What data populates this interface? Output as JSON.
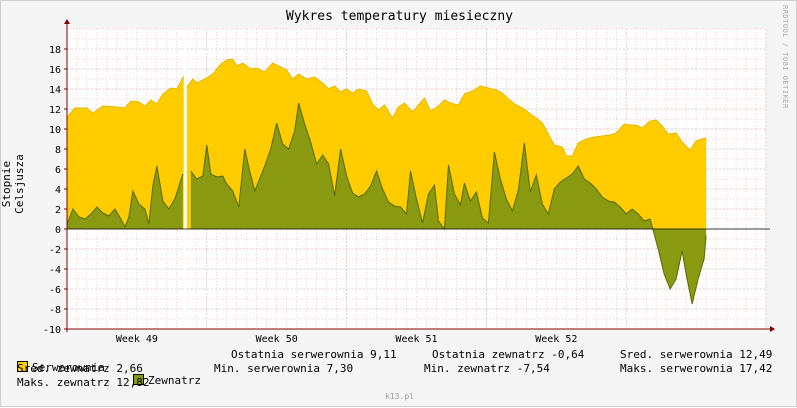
{
  "colors": {
    "serwerownia": "#FFCC00",
    "serwerownia_line": "#E8B800",
    "zewnatrz": "#8A9A10",
    "zewnatrz_line": "#5A6A00",
    "grid_minor": "#FF9999",
    "grid_major": "#C0C0C0",
    "axis": "#800000"
  },
  "watermark": "RRDTOOL / TOBI OETIKER",
  "footer": "k13.pl",
  "chart_data": {
    "type": "area",
    "title": "Wykres temperatury miesieczny",
    "ylabel": "Stopnie Celsjusza",
    "xlabel": "",
    "ylim": [
      -10,
      20
    ],
    "yticks": [
      "18",
      "16",
      "14",
      "12",
      "10",
      "8",
      "6",
      "4",
      "2",
      "0",
      "-2",
      "-4",
      "-6",
      "-8",
      "-10"
    ],
    "ytick_values": [
      18,
      16,
      14,
      12,
      10,
      8,
      6,
      4,
      2,
      0,
      -2,
      -4,
      -6,
      -8,
      -10
    ],
    "xlim": [
      0,
      35
    ],
    "xticks": [
      {
        "label": "Week 49",
        "x": 3.5
      },
      {
        "label": "Week 50",
        "x": 10.5
      },
      {
        "label": "Week 51",
        "x": 17.5
      },
      {
        "label": "Week 52",
        "x": 24.5
      }
    ],
    "grid": true,
    "gap": [
      5.85,
      6.0
    ],
    "series": [
      {
        "name": "Serwerownia",
        "points": [
          [
            0,
            11.2
          ],
          [
            0.4,
            12.1
          ],
          [
            1.0,
            12.1
          ],
          [
            1.3,
            11.6
          ],
          [
            1.8,
            12.3
          ],
          [
            2.5,
            12.2
          ],
          [
            2.9,
            12.1
          ],
          [
            3.2,
            12.8
          ],
          [
            3.6,
            12.7
          ],
          [
            3.9,
            12.3
          ],
          [
            4.2,
            12.9
          ],
          [
            4.5,
            12.5
          ],
          [
            4.8,
            13.5
          ],
          [
            5.2,
            14.1
          ],
          [
            5.5,
            14.0
          ],
          [
            5.8,
            15.1
          ],
          [
            5.85,
            15.3
          ],
          [
            6.0,
            14.2
          ],
          [
            6.3,
            15.0
          ],
          [
            6.5,
            14.6
          ],
          [
            6.9,
            15.0
          ],
          [
            7.3,
            15.5
          ],
          [
            7.7,
            16.5
          ],
          [
            8.0,
            16.9
          ],
          [
            8.3,
            17.0
          ],
          [
            8.5,
            16.3
          ],
          [
            8.8,
            16.6
          ],
          [
            9.2,
            16.0
          ],
          [
            9.5,
            16.1
          ],
          [
            9.9,
            15.7
          ],
          [
            10.3,
            16.6
          ],
          [
            10.6,
            16.3
          ],
          [
            11.0,
            15.9
          ],
          [
            11.3,
            15.0
          ],
          [
            11.6,
            15.5
          ],
          [
            12.0,
            15.0
          ],
          [
            12.4,
            15.2
          ],
          [
            12.8,
            14.6
          ],
          [
            13.1,
            14.0
          ],
          [
            13.4,
            14.3
          ],
          [
            13.7,
            13.7
          ],
          [
            14.0,
            14.0
          ],
          [
            14.3,
            13.6
          ],
          [
            14.6,
            14.0
          ],
          [
            15.0,
            13.8
          ],
          [
            15.3,
            12.5
          ],
          [
            15.6,
            11.9
          ],
          [
            15.9,
            12.4
          ],
          [
            16.3,
            11.1
          ],
          [
            16.6,
            12.2
          ],
          [
            16.9,
            12.6
          ],
          [
            17.3,
            11.7
          ],
          [
            17.6,
            12.4
          ],
          [
            17.9,
            13.1
          ],
          [
            18.2,
            11.8
          ],
          [
            18.6,
            12.3
          ],
          [
            18.9,
            12.9
          ],
          [
            19.2,
            12.6
          ],
          [
            19.6,
            12.4
          ],
          [
            19.9,
            13.5
          ],
          [
            20.3,
            13.8
          ],
          [
            20.7,
            14.3
          ],
          [
            21.1,
            14.1
          ],
          [
            21.5,
            13.9
          ],
          [
            21.8,
            13.6
          ],
          [
            22.1,
            13.0
          ],
          [
            22.5,
            12.4
          ],
          [
            22.9,
            12.0
          ],
          [
            23.2,
            11.5
          ],
          [
            23.5,
            11.1
          ],
          [
            23.8,
            10.6
          ],
          [
            24.1,
            9.5
          ],
          [
            24.4,
            8.4
          ],
          [
            24.8,
            8.2
          ],
          [
            25.0,
            7.3
          ],
          [
            25.3,
            7.3
          ],
          [
            25.6,
            8.6
          ],
          [
            26.0,
            9.0
          ],
          [
            26.4,
            9.2
          ],
          [
            26.8,
            9.3
          ],
          [
            27.2,
            9.4
          ],
          [
            27.5,
            9.6
          ],
          [
            27.9,
            10.5
          ],
          [
            28.2,
            10.4
          ],
          [
            28.5,
            10.4
          ],
          [
            28.8,
            10.1
          ],
          [
            29.2,
            10.8
          ],
          [
            29.5,
            10.9
          ],
          [
            29.8,
            10.3
          ],
          [
            30.1,
            9.5
          ],
          [
            30.5,
            9.6
          ],
          [
            30.8,
            8.7
          ],
          [
            31.2,
            7.9
          ],
          [
            31.5,
            8.8
          ],
          [
            31.8,
            9.0
          ],
          [
            32.0,
            9.1
          ]
        ]
      },
      {
        "name": "Zewnatrz",
        "points": [
          [
            0,
            0.5
          ],
          [
            0.3,
            2.0
          ],
          [
            0.6,
            1.2
          ],
          [
            0.9,
            1.0
          ],
          [
            1.2,
            1.5
          ],
          [
            1.5,
            2.2
          ],
          [
            1.8,
            1.6
          ],
          [
            2.1,
            1.3
          ],
          [
            2.4,
            2.0
          ],
          [
            2.7,
            1.0
          ],
          [
            2.9,
            0.2
          ],
          [
            3.1,
            1.2
          ],
          [
            3.3,
            3.8
          ],
          [
            3.6,
            2.5
          ],
          [
            3.9,
            2.0
          ],
          [
            4.1,
            0.5
          ],
          [
            4.3,
            4.3
          ],
          [
            4.5,
            6.3
          ],
          [
            4.8,
            2.8
          ],
          [
            5.1,
            2.0
          ],
          [
            5.4,
            3.0
          ],
          [
            5.8,
            5.5
          ],
          [
            6.2,
            5.8
          ],
          [
            6.5,
            5.0
          ],
          [
            6.8,
            5.3
          ],
          [
            7.0,
            8.4
          ],
          [
            7.2,
            5.5
          ],
          [
            7.5,
            5.2
          ],
          [
            7.8,
            5.3
          ],
          [
            8.0,
            4.5
          ],
          [
            8.3,
            3.8
          ],
          [
            8.6,
            2.2
          ],
          [
            8.9,
            8.0
          ],
          [
            9.1,
            6.2
          ],
          [
            9.4,
            3.8
          ],
          [
            9.6,
            4.8
          ],
          [
            9.9,
            6.3
          ],
          [
            10.2,
            8.0
          ],
          [
            10.5,
            10.6
          ],
          [
            10.8,
            8.5
          ],
          [
            11.1,
            8.0
          ],
          [
            11.4,
            9.8
          ],
          [
            11.6,
            12.6
          ],
          [
            11.9,
            10.5
          ],
          [
            12.2,
            8.7
          ],
          [
            12.5,
            6.5
          ],
          [
            12.8,
            7.4
          ],
          [
            13.1,
            6.5
          ],
          [
            13.4,
            3.3
          ],
          [
            13.7,
            8.0
          ],
          [
            14.0,
            5.3
          ],
          [
            14.3,
            3.6
          ],
          [
            14.6,
            3.2
          ],
          [
            14.9,
            3.5
          ],
          [
            15.2,
            4.3
          ],
          [
            15.5,
            5.8
          ],
          [
            15.8,
            4.0
          ],
          [
            16.1,
            2.7
          ],
          [
            16.4,
            2.3
          ],
          [
            16.7,
            2.2
          ],
          [
            17.0,
            1.5
          ],
          [
            17.2,
            5.8
          ],
          [
            17.5,
            3.0
          ],
          [
            17.8,
            0.6
          ],
          [
            18.1,
            3.5
          ],
          [
            18.4,
            4.4
          ],
          [
            18.6,
            0.8
          ],
          [
            18.9,
            0.0
          ],
          [
            19.1,
            6.4
          ],
          [
            19.4,
            3.5
          ],
          [
            19.7,
            2.4
          ],
          [
            19.9,
            4.6
          ],
          [
            20.2,
            2.8
          ],
          [
            20.5,
            3.7
          ],
          [
            20.8,
            1.1
          ],
          [
            21.1,
            0.6
          ],
          [
            21.4,
            7.7
          ],
          [
            21.7,
            5.0
          ],
          [
            22.0,
            3.0
          ],
          [
            22.3,
            1.8
          ],
          [
            22.6,
            3.9
          ],
          [
            22.9,
            8.6
          ],
          [
            23.2,
            3.7
          ],
          [
            23.5,
            5.4
          ],
          [
            23.8,
            2.5
          ],
          [
            24.1,
            1.5
          ],
          [
            24.4,
            4.0
          ],
          [
            24.7,
            4.7
          ],
          [
            25.0,
            5.1
          ],
          [
            25.3,
            5.5
          ],
          [
            25.6,
            6.3
          ],
          [
            25.9,
            5.0
          ],
          [
            26.2,
            4.6
          ],
          [
            26.5,
            4.0
          ],
          [
            26.8,
            3.2
          ],
          [
            27.1,
            2.8
          ],
          [
            27.4,
            2.7
          ],
          [
            27.7,
            2.2
          ],
          [
            28.0,
            1.5
          ],
          [
            28.3,
            2.0
          ],
          [
            28.6,
            1.5
          ],
          [
            28.9,
            0.8
          ],
          [
            29.2,
            1.0
          ],
          [
            29.6,
            -2.0
          ],
          [
            29.9,
            -4.5
          ],
          [
            30.2,
            -6.0
          ],
          [
            30.5,
            -5.0
          ],
          [
            30.8,
            -2.2
          ],
          [
            31.0,
            -4.5
          ],
          [
            31.3,
            -7.5
          ],
          [
            31.6,
            -5.0
          ],
          [
            31.9,
            -3.0
          ],
          [
            32.0,
            -0.64
          ]
        ]
      }
    ]
  },
  "legend": [
    {
      "label": "Serwerownia",
      "color_key": "serwerownia"
    },
    {
      "label": "Zewnatrz",
      "color_key": "zewnatrz"
    }
  ],
  "stats": {
    "ostatnia_serwerownia": "Ostatnia serwerownia 9,11",
    "ostatnia_zewnatrz": "Ostatnia zewnatrz -0,64",
    "sred_serwerownia": "Sred. serwerownia 12,49",
    "sred_zewnatrz": "Sred. zewnatrz 2,66",
    "min_serwerownia": "Min. serwerownia 7,30",
    "min_zewnatrz": "Min. zewnatrz -7,54",
    "maks_serwerownia": "Maks. serwerownia 17,42",
    "maks_zewnatrz": "Maks. zewnatrz 12,82"
  }
}
